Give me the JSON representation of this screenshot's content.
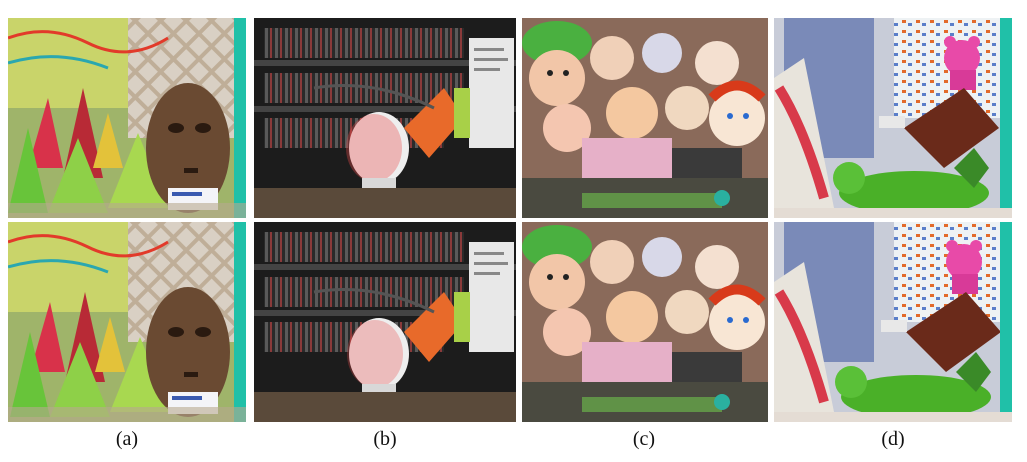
{
  "figure": {
    "columns": [
      {
        "caption": "(a)",
        "scene": "cones",
        "anaglyph_red": "#e8342c",
        "anaglyph_cyan": "#20c8c0"
      },
      {
        "caption": "(b)",
        "scene": "head",
        "anaglyph_red": "#e8342c",
        "anaglyph_cyan": "#20c8c0"
      },
      {
        "caption": "(c)",
        "scene": "dolls",
        "anaglyph_red": "#e8342c",
        "anaglyph_cyan": "#20c8c0"
      },
      {
        "caption": "(d)",
        "scene": "toys",
        "anaglyph_red": "#e8342c",
        "anaglyph_cyan": "#20c8c0"
      }
    ],
    "rows": [
      "top",
      "bottom"
    ]
  }
}
